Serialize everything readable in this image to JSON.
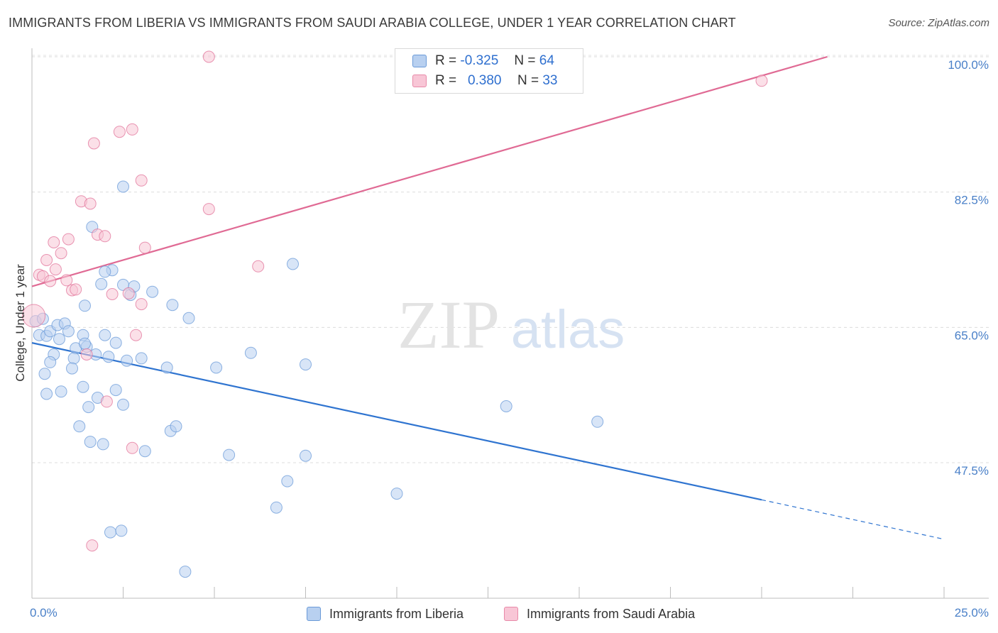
{
  "title": "IMMIGRANTS FROM LIBERIA VS IMMIGRANTS FROM SAUDI ARABIA COLLEGE, UNDER 1 YEAR CORRELATION CHART",
  "source": "Source: ZipAtlas.com",
  "watermark": {
    "zip": "ZIP",
    "atlas": "atlas"
  },
  "legend": [
    {
      "r_label": "R =",
      "r_value": "-0.325",
      "n_label": "N =",
      "n_value": "64",
      "fill": "#b8d0f0",
      "stroke": "#6a9ad8"
    },
    {
      "r_label": "R =",
      "r_value": "0.380",
      "n_label": "N =",
      "n_value": "33",
      "fill": "#f8c6d6",
      "stroke": "#e889a8"
    }
  ],
  "bottom_legend": [
    {
      "label": "Immigrants from Liberia",
      "fill": "#b8d0f0",
      "stroke": "#6a9ad8"
    },
    {
      "label": "Immigrants from Saudi Arabia",
      "fill": "#f8c6d6",
      "stroke": "#e889a8"
    }
  ],
  "chart_data": {
    "type": "scatter",
    "title": "IMMIGRANTS FROM LIBERIA VS IMMIGRANTS FROM SAUDI ARABIA COLLEGE, UNDER 1 YEAR CORRELATION CHART",
    "xlabel": "",
    "ylabel": "College, Under 1 year",
    "xlim": [
      0,
      25
    ],
    "ylim": [
      32,
      102
    ],
    "x_tick_labels": [
      {
        "value": 0,
        "label": "0.0%"
      },
      {
        "value": 25,
        "label": "25.0%"
      }
    ],
    "y_ticks": [
      {
        "value": 100,
        "label": "100.0%"
      },
      {
        "value": 82.5,
        "label": "82.5%"
      },
      {
        "value": 65,
        "label": "65.0%"
      },
      {
        "value": 47.5,
        "label": "47.5%"
      }
    ],
    "series": [
      {
        "name": "Immigrants from Liberia",
        "color": "#6a9ad8",
        "fill": "#b8d0f0",
        "trend": {
          "x_start": 0,
          "y_start": 63.0,
          "x_end_solid": 20.0,
          "y_end_solid": 42.7,
          "x_end_dashed": 25.0,
          "y_end_dashed": 37.6
        },
        "points": [
          [
            0.1,
            65.8
          ],
          [
            0.3,
            66.1
          ],
          [
            0.2,
            64.0
          ],
          [
            0.4,
            63.9
          ],
          [
            0.5,
            64.5
          ],
          [
            0.6,
            61.5
          ],
          [
            0.5,
            60.5
          ],
          [
            0.35,
            59.0
          ],
          [
            0.7,
            65.3
          ],
          [
            0.75,
            63.5
          ],
          [
            0.9,
            65.5
          ],
          [
            1.0,
            64.5
          ],
          [
            1.2,
            62.3
          ],
          [
            1.15,
            61.0
          ],
          [
            1.5,
            62.5
          ],
          [
            1.1,
            59.7
          ],
          [
            1.4,
            64.0
          ],
          [
            1.45,
            62.9
          ],
          [
            1.75,
            61.5
          ],
          [
            2.1,
            61.2
          ],
          [
            1.9,
            70.6
          ],
          [
            2.2,
            72.4
          ],
          [
            2.5,
            70.5
          ],
          [
            2.0,
            64.0
          ],
          [
            2.6,
            60.7
          ],
          [
            2.7,
            69.2
          ],
          [
            2.3,
            63.0
          ],
          [
            2.8,
            70.3
          ],
          [
            3.0,
            61.0
          ],
          [
            3.3,
            69.6
          ],
          [
            4.3,
            66.2
          ],
          [
            3.85,
            67.9
          ],
          [
            1.45,
            67.8
          ],
          [
            2.0,
            72.2
          ],
          [
            1.65,
            78.0
          ],
          [
            2.5,
            83.2
          ],
          [
            7.15,
            73.2
          ],
          [
            6.0,
            61.7
          ],
          [
            7.5,
            60.2
          ],
          [
            0.8,
            56.7
          ],
          [
            0.4,
            56.4
          ],
          [
            1.4,
            57.3
          ],
          [
            1.55,
            54.7
          ],
          [
            1.8,
            55.9
          ],
          [
            2.3,
            56.9
          ],
          [
            2.5,
            55.0
          ],
          [
            1.3,
            52.2
          ],
          [
            1.6,
            50.2
          ],
          [
            1.95,
            49.9
          ],
          [
            3.1,
            49.0
          ],
          [
            3.8,
            51.6
          ],
          [
            3.95,
            52.2
          ],
          [
            5.4,
            48.5
          ],
          [
            7.5,
            48.4
          ],
          [
            7.0,
            45.1
          ],
          [
            6.7,
            41.7
          ],
          [
            10.0,
            43.5
          ],
          [
            2.15,
            38.5
          ],
          [
            2.45,
            38.7
          ],
          [
            4.2,
            33.4
          ],
          [
            13.0,
            54.8
          ],
          [
            15.5,
            52.8
          ],
          [
            3.7,
            59.8
          ],
          [
            5.05,
            59.8
          ]
        ]
      },
      {
        "name": "Immigrants from Saudi Arabia",
        "color": "#e27399",
        "fill": "#f8c6d6",
        "trend": {
          "x_start": 0,
          "y_start": 70.3,
          "x_end_solid": 21.8,
          "y_end_solid": 100.0
        },
        "points": [
          [
            0.05,
            66.5
          ],
          [
            0.2,
            71.8
          ],
          [
            0.3,
            71.6
          ],
          [
            0.5,
            71.0
          ],
          [
            0.4,
            73.7
          ],
          [
            0.6,
            76.0
          ],
          [
            0.65,
            72.5
          ],
          [
            0.8,
            74.6
          ],
          [
            0.95,
            71.1
          ],
          [
            1.0,
            76.4
          ],
          [
            1.1,
            69.8
          ],
          [
            1.2,
            69.9
          ],
          [
            1.35,
            81.3
          ],
          [
            1.6,
            81.0
          ],
          [
            1.8,
            77.0
          ],
          [
            2.0,
            76.8
          ],
          [
            2.2,
            69.3
          ],
          [
            2.65,
            69.4
          ],
          [
            3.0,
            68.0
          ],
          [
            3.1,
            75.3
          ],
          [
            2.85,
            64.0
          ],
          [
            1.7,
            88.8
          ],
          [
            2.4,
            90.3
          ],
          [
            2.75,
            90.6
          ],
          [
            3.0,
            84.0
          ],
          [
            4.85,
            80.3
          ],
          [
            6.2,
            72.9
          ],
          [
            4.85,
            100.0
          ],
          [
            20.0,
            96.9
          ],
          [
            1.5,
            61.5
          ],
          [
            2.05,
            55.4
          ],
          [
            2.75,
            49.4
          ],
          [
            1.65,
            36.8
          ]
        ]
      }
    ]
  }
}
